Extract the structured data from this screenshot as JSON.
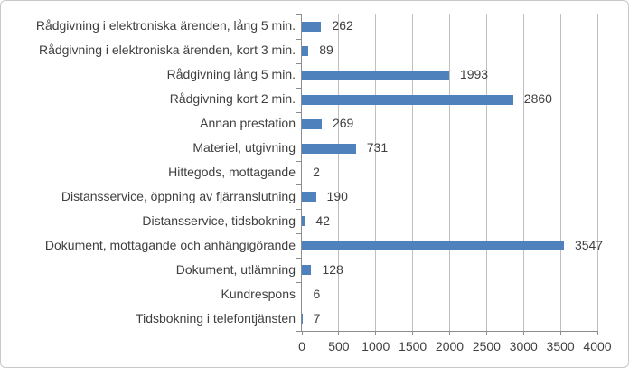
{
  "chart_data": {
    "type": "bar",
    "orientation": "horizontal",
    "title": "",
    "xlabel": "",
    "ylabel": "",
    "categories": [
      "Rådgivning i elektroniska ärenden, lång 5 min.",
      "Rådgivning i elektroniska ärenden, kort 3 min.",
      "Rådgivning lång 5 min.",
      "Rådgivning kort 2 min.",
      "Annan prestation",
      "Materiel, utgivning",
      "Hittegods, mottagande",
      "Distansservice, öppning av fjärranslutning",
      "Distansservice, tidsbokning",
      "Dokument, mottagande och anhängigörande",
      "Dokument, utlämning",
      "Kundrespons",
      "Tidsbokning i telefontjänsten"
    ],
    "values": [
      262,
      89,
      1993,
      2860,
      269,
      731,
      2,
      190,
      42,
      3547,
      128,
      6,
      7
    ],
    "data_label_texts": [
      "262",
      "89",
      "1993",
      "2860",
      "269",
      "731",
      "2",
      "190",
      "42",
      "3547",
      "128",
      "6",
      "7"
    ],
    "xlim": [
      0,
      4000
    ],
    "xticks": [
      0,
      500,
      1000,
      1500,
      2000,
      2500,
      3000,
      3500,
      4000
    ],
    "xtick_labels": [
      "0",
      "500",
      "1000",
      "1500",
      "2000",
      "2500",
      "3000",
      "3500",
      "4000"
    ],
    "grid": "vertical-gridlines-on",
    "legend": "none",
    "data_labels_position": "outside-end"
  },
  "colors": {
    "bar": "#4F81BD",
    "gridline": "#bfbfbf",
    "axis": "#8c8c8c",
    "text": "#3f3f3f",
    "border": "#c9c9c9",
    "background": "#ffffff"
  }
}
